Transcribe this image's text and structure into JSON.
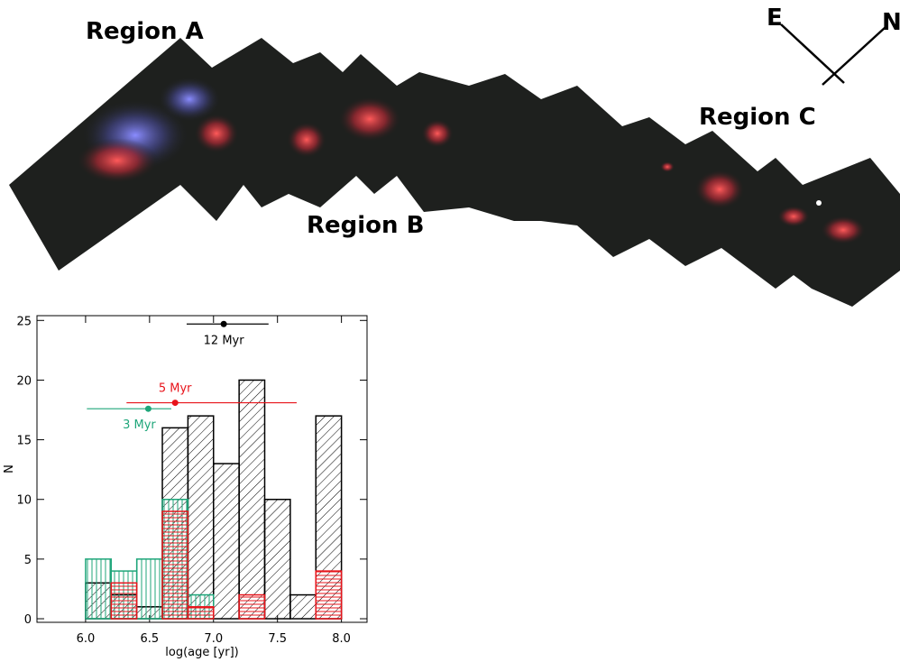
{
  "image": {
    "labels": [
      "Region A",
      "Region B",
      "Region C"
    ],
    "compass": [
      "E",
      "N"
    ]
  },
  "chart_data": {
    "type": "histogram",
    "bins": [
      6.0,
      6.2,
      6.4,
      6.6,
      6.8,
      7.0,
      7.2,
      7.4,
      7.6,
      7.8,
      8.0
    ],
    "series": [
      {
        "color": "#000000",
        "hatch": "diagonal",
        "values": [
          3,
          2,
          1,
          16,
          17,
          13,
          20,
          10,
          2,
          17
        ]
      },
      {
        "color": "#1fa67a",
        "hatch": "vertical",
        "values": [
          5,
          4,
          5,
          10,
          2,
          0,
          0,
          0,
          0,
          0
        ]
      },
      {
        "color": "#e8141b",
        "hatch": "horizontal",
        "values": [
          0,
          3,
          0,
          9,
          1,
          0,
          2,
          0,
          0,
          4
        ]
      }
    ],
    "markers": [
      {
        "label": "12 Myr",
        "color": "#000000",
        "x": 7.08,
        "y": 24.7,
        "x_low": 6.79,
        "x_high": 7.43
      },
      {
        "label": "5 Myr",
        "color": "#e8141b",
        "x": 6.7,
        "y": 18.1,
        "x_low": 6.32,
        "x_high": 7.65
      },
      {
        "label": "3 Myr",
        "color": "#1fa67a",
        "x": 6.49,
        "y": 17.6,
        "x_low": 6.01,
        "x_high": 6.67
      }
    ],
    "xlabel": "log(age [yr])",
    "ylabel": "N",
    "xlim": [
      5.62,
      8.2
    ],
    "ylim": [
      -0.3,
      25.4
    ],
    "xticks": [
      {
        "value": 6.0,
        "label": "6.0"
      },
      {
        "value": 6.5,
        "label": "6.5"
      },
      {
        "value": 7.0,
        "label": "7.0"
      },
      {
        "value": 7.5,
        "label": "7.5"
      },
      {
        "value": 8.0,
        "label": "8.0"
      }
    ],
    "yticks": [
      0,
      5,
      10,
      15,
      20,
      25
    ]
  }
}
